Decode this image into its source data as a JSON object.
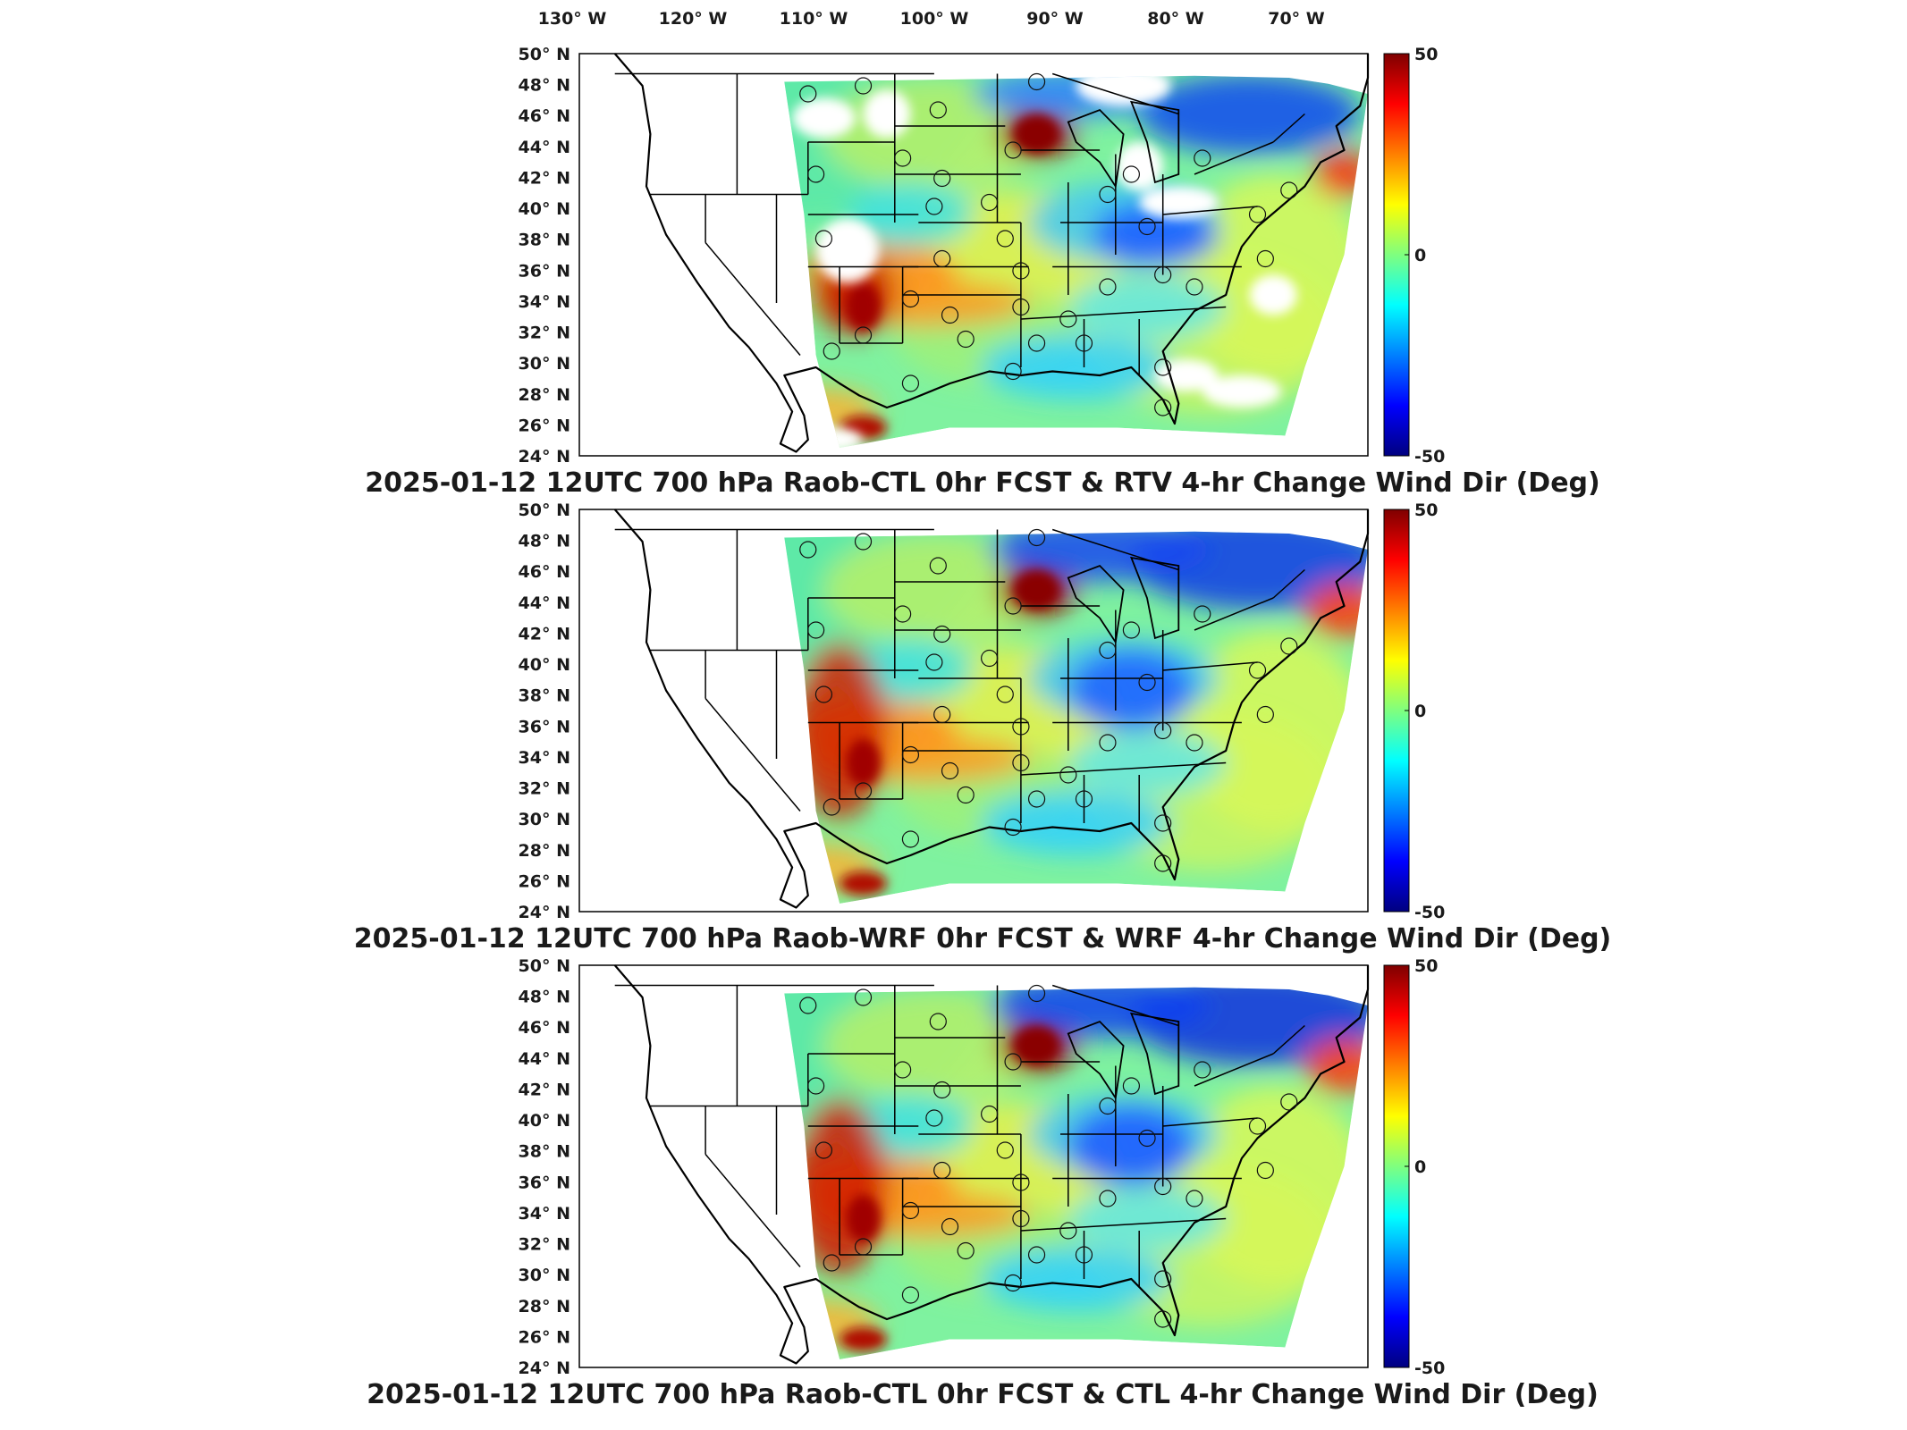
{
  "chart_data": {
    "type": "heatmap",
    "lon_ticks": [
      "130° W",
      "120° W",
      "110° W",
      "100° W",
      "90° W",
      "80° W",
      "70° W"
    ],
    "lat_ticks": [
      "50° N",
      "48° N",
      "46° N",
      "44° N",
      "42° N",
      "40° N",
      "38° N",
      "36° N",
      "34° N",
      "32° N",
      "30° N",
      "28° N",
      "26° N",
      "24° N"
    ],
    "colorbar": {
      "min": -50,
      "max": 50,
      "ticks": [
        "50",
        "0",
        "-50"
      ],
      "colormap": "jet"
    },
    "panels": [
      {
        "title": "2025-01-12 12UTC 700 hPa Raob-CTL 0hr FCST & RTV 4-hr Change Wind Dir (Deg)"
      },
      {
        "title": "2025-01-12 12UTC 700 hPa Raob-WRF 0hr FCST & WRF 4-hr Change Wind Dir (Deg)"
      },
      {
        "title": "2025-01-12 12UTC 700 hPa Raob-CTL 0hr FCST & CTL 4-hr Change Wind Dir (Deg)"
      }
    ]
  }
}
